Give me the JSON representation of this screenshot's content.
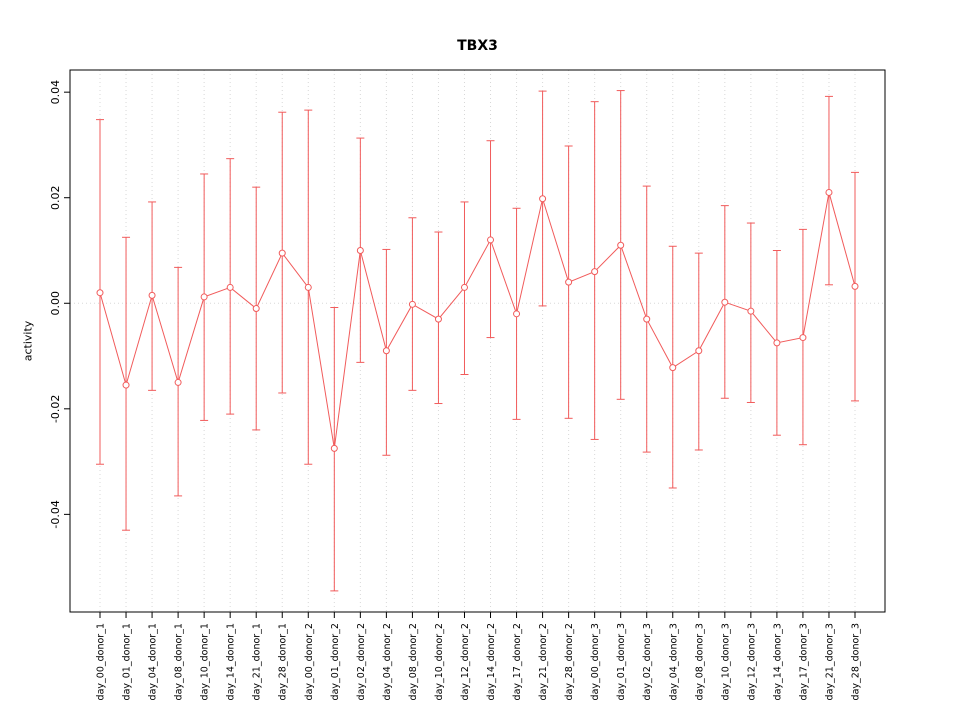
{
  "chart_data": {
    "type": "line",
    "title": "TBX3",
    "xlabel": "",
    "ylabel": "activity",
    "ylim": [
      -0.0585,
      0.0442
    ],
    "yticks": [
      -0.04,
      -0.02,
      0.0,
      0.02,
      0.04
    ],
    "legend": "none",
    "grid": "dotted vertical line per category plus dotted horizontal zero line",
    "point_style": "open circle with error bars, connected by line",
    "series_color": "#f15b5b",
    "grid_color": "#d8d8d8",
    "frame_color": "#000000",
    "categories": [
      "day_00_donor_1",
      "day_01_donor_1",
      "day_04_donor_1",
      "day_08_donor_1",
      "day_10_donor_1",
      "day_14_donor_1",
      "day_21_donor_1",
      "day_28_donor_1",
      "day_00_donor_2",
      "day_01_donor_2",
      "day_02_donor_2",
      "day_04_donor_2",
      "day_08_donor_2",
      "day_10_donor_2",
      "day_12_donor_2",
      "day_14_donor_2",
      "day_17_donor_2",
      "day_21_donor_2",
      "day_28_donor_2",
      "day_00_donor_3",
      "day_01_donor_3",
      "day_02_donor_3",
      "day_04_donor_3",
      "day_08_donor_3",
      "day_10_donor_3",
      "day_12_donor_3",
      "day_14_donor_3",
      "day_17_donor_3",
      "day_21_donor_3",
      "day_28_donor_3"
    ],
    "values": [
      0.002,
      -0.0155,
      0.0015,
      -0.015,
      0.0012,
      0.003,
      -0.001,
      0.0095,
      0.003,
      -0.0275,
      0.01,
      -0.009,
      -0.0002,
      -0.003,
      0.003,
      0.012,
      -0.002,
      0.0198,
      0.004,
      0.006,
      0.011,
      -0.003,
      -0.0122,
      -0.009,
      0.0002,
      -0.0015,
      -0.0075,
      -0.0065,
      0.021,
      0.0032
    ],
    "error_low": [
      -0.0305,
      -0.043,
      -0.0165,
      -0.0365,
      -0.0222,
      -0.021,
      -0.024,
      -0.017,
      -0.0305,
      -0.0545,
      -0.0112,
      -0.0288,
      -0.0165,
      -0.019,
      -0.0135,
      -0.0065,
      -0.022,
      -0.0005,
      -0.0218,
      -0.0258,
      -0.0182,
      -0.0282,
      -0.035,
      -0.0278,
      -0.018,
      -0.0188,
      -0.025,
      -0.0268,
      0.0035,
      -0.0185
    ],
    "error_high": [
      0.0348,
      0.0125,
      0.0192,
      0.0068,
      0.0245,
      0.0274,
      0.022,
      0.0362,
      0.0366,
      -0.0008,
      0.0313,
      0.0102,
      0.0162,
      0.0135,
      0.0192,
      0.0308,
      0.018,
      0.0402,
      0.0298,
      0.0382,
      0.0403,
      0.0222,
      0.0108,
      0.0095,
      0.0185,
      0.0152,
      0.01,
      0.014,
      0.0392,
      0.0248
    ]
  }
}
